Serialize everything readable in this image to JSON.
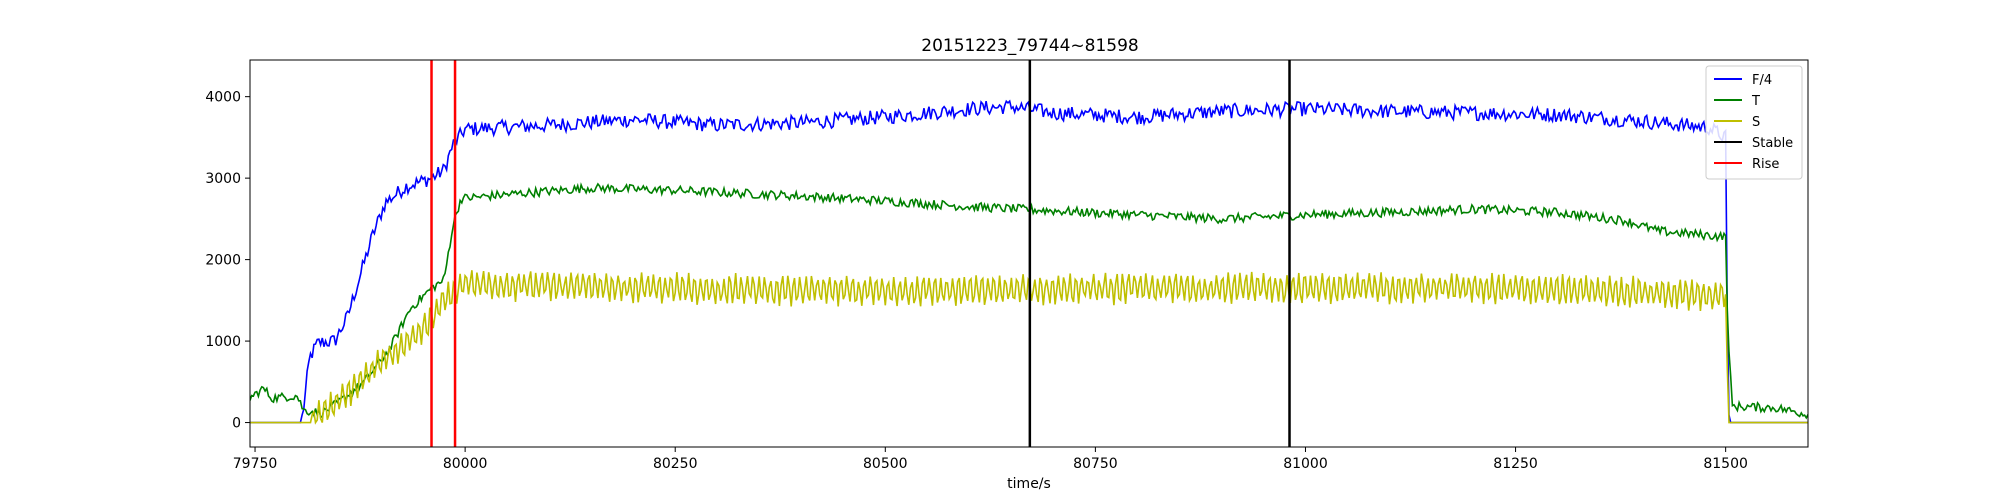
{
  "chart_data": {
    "type": "line",
    "title": "20151223_79744~81598",
    "xlabel": "time/s",
    "ylabel": "",
    "xlim": [
      79744,
      81598
    ],
    "ylim": [
      -300,
      4450
    ],
    "x_ticks": [
      79750,
      80000,
      80250,
      80500,
      80750,
      81000,
      81250,
      81500
    ],
    "y_ticks": [
      0,
      1000,
      2000,
      3000,
      4000
    ],
    "grid": false,
    "legend_position": "top-right",
    "series": [
      {
        "name": "F/4",
        "color": "#0000ff",
        "noise": 90,
        "points": [
          [
            79744,
            0
          ],
          [
            79805,
            0
          ],
          [
            79808,
            200
          ],
          [
            79815,
            800
          ],
          [
            79825,
            980
          ],
          [
            79845,
            1000
          ],
          [
            79860,
            1300
          ],
          [
            79875,
            1800
          ],
          [
            79890,
            2300
          ],
          [
            79905,
            2700
          ],
          [
            79930,
            2900
          ],
          [
            79960,
            3000
          ],
          [
            79975,
            3100
          ],
          [
            79985,
            3400
          ],
          [
            80000,
            3600
          ],
          [
            80100,
            3650
          ],
          [
            80200,
            3720
          ],
          [
            80300,
            3650
          ],
          [
            80400,
            3680
          ],
          [
            80500,
            3750
          ],
          [
            80600,
            3850
          ],
          [
            80650,
            3880
          ],
          [
            80700,
            3800
          ],
          [
            80800,
            3750
          ],
          [
            80900,
            3820
          ],
          [
            81000,
            3850
          ],
          [
            81100,
            3820
          ],
          [
            81200,
            3800
          ],
          [
            81300,
            3780
          ],
          [
            81400,
            3700
          ],
          [
            81480,
            3620
          ],
          [
            81500,
            3500
          ],
          [
            81503,
            100
          ],
          [
            81506,
            0
          ],
          [
            81598,
            0
          ]
        ]
      },
      {
        "name": "T",
        "color": "#008000",
        "noise": 55,
        "points": [
          [
            79744,
            300
          ],
          [
            79760,
            420
          ],
          [
            79770,
            300
          ],
          [
            79800,
            330
          ],
          [
            79808,
            150
          ],
          [
            79830,
            120
          ],
          [
            79850,
            250
          ],
          [
            79880,
            500
          ],
          [
            79910,
            900
          ],
          [
            79935,
            1400
          ],
          [
            79960,
            1650
          ],
          [
            79975,
            1750
          ],
          [
            79985,
            2400
          ],
          [
            79995,
            2750
          ],
          [
            80050,
            2800
          ],
          [
            80150,
            2880
          ],
          [
            80250,
            2850
          ],
          [
            80400,
            2780
          ],
          [
            80500,
            2720
          ],
          [
            80600,
            2650
          ],
          [
            80700,
            2600
          ],
          [
            80800,
            2550
          ],
          [
            80900,
            2500
          ],
          [
            81000,
            2550
          ],
          [
            81100,
            2580
          ],
          [
            81200,
            2620
          ],
          [
            81300,
            2580
          ],
          [
            81380,
            2480
          ],
          [
            81420,
            2350
          ],
          [
            81500,
            2280
          ],
          [
            81503,
            1000
          ],
          [
            81508,
            200
          ],
          [
            81560,
            180
          ],
          [
            81598,
            100
          ]
        ]
      },
      {
        "name": "S",
        "color": "#bfbf00",
        "noise": 180,
        "points": [
          [
            79744,
            0
          ],
          [
            79815,
            0
          ],
          [
            79830,
            100
          ],
          [
            79860,
            350
          ],
          [
            79890,
            650
          ],
          [
            79920,
            900
          ],
          [
            79955,
            1200
          ],
          [
            79975,
            1500
          ],
          [
            80000,
            1700
          ],
          [
            80200,
            1650
          ],
          [
            80400,
            1620
          ],
          [
            80600,
            1620
          ],
          [
            80800,
            1650
          ],
          [
            81000,
            1650
          ],
          [
            81200,
            1650
          ],
          [
            81400,
            1600
          ],
          [
            81500,
            1550
          ],
          [
            81503,
            0
          ],
          [
            81598,
            0
          ]
        ]
      }
    ],
    "vlines": [
      {
        "name": "Stable",
        "color": "#000000",
        "x": [
          80672,
          80981
        ]
      },
      {
        "name": "Rise",
        "color": "#ff0000",
        "x": [
          79960,
          79988
        ]
      }
    ],
    "legend": [
      {
        "label": "F/4",
        "color": "#0000ff"
      },
      {
        "label": "T",
        "color": "#008000"
      },
      {
        "label": "S",
        "color": "#bfbf00"
      },
      {
        "label": "Stable",
        "color": "#000000"
      },
      {
        "label": "Rise",
        "color": "#ff0000"
      }
    ]
  }
}
